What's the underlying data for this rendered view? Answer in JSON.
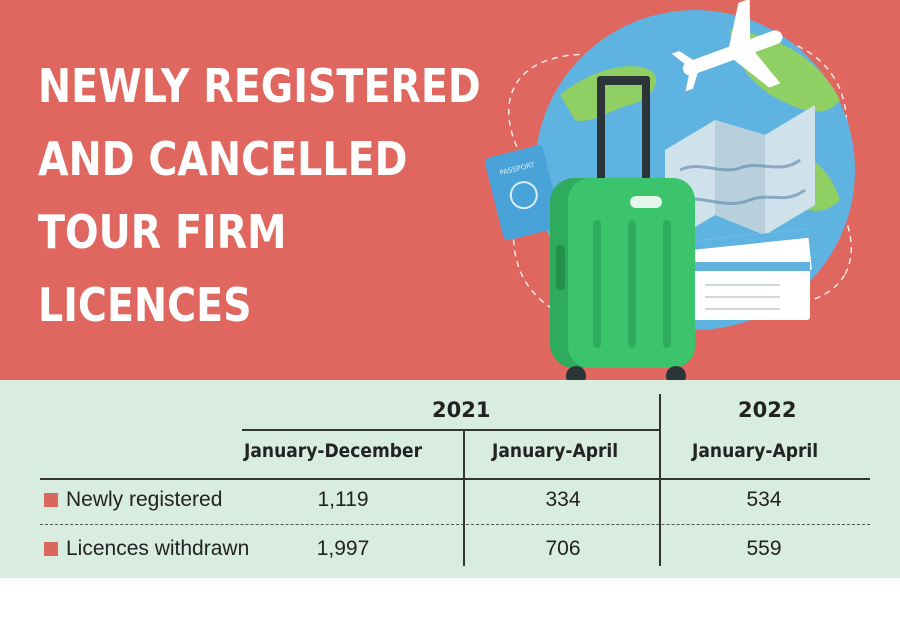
{
  "title_lines": [
    "NEWLY REGISTERED",
    "AND CANCELLED",
    "TOUR FIRM",
    "LICENCES"
  ],
  "colors": {
    "banner": "#e0675f",
    "table_bg": "#d8ecdf",
    "swatch": "#d9675e",
    "luggage": "#2eab5c",
    "globe": "#5fb3e0"
  },
  "illustration": {
    "icons": [
      "globe-icon",
      "airplane-icon",
      "suitcase-icon",
      "passport-icon",
      "map-icon",
      "ticket-icon"
    ],
    "passport_text": "PASSPORT"
  },
  "chart_data": {
    "type": "table",
    "year_groups": [
      {
        "year": "2021",
        "periods": [
          "January-December",
          "January-April"
        ]
      },
      {
        "year": "2022",
        "periods": [
          "January-April"
        ]
      }
    ],
    "columns": [
      "January-December",
      "January-April",
      "January-April"
    ],
    "rows": [
      {
        "label": "Newly registered",
        "values": [
          "1,119",
          "334",
          "534"
        ]
      },
      {
        "label": "Licences withdrawn",
        "values": [
          "1,997",
          "706",
          "559"
        ]
      }
    ]
  }
}
